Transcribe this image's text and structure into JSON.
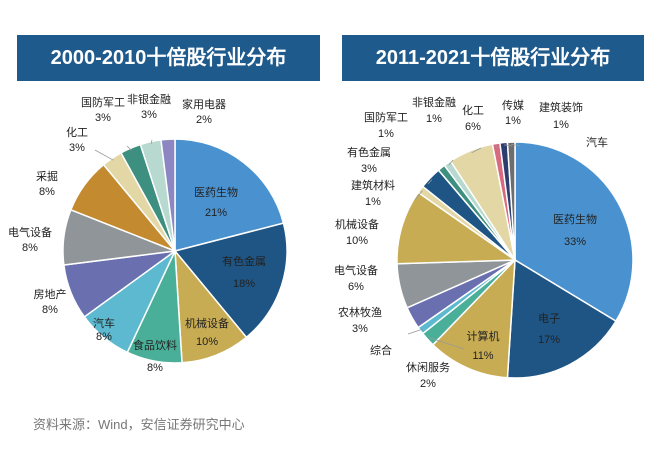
{
  "source_text": "资料来源：Wind，安信证券研究中心",
  "colors": {
    "header": "#1f5a8c",
    "医药生物": "#4a92cf",
    "有色金属": "#1f5584",
    "机械设备": "#c8ac54",
    "食品饮料": "#4aaf98",
    "汽车": "#5cb9cf",
    "房地产": "#6a6faf",
    "电气设备": "#8f9599",
    "采掘": "#c48a30",
    "化工": "#e2d7a5",
    "国防军工": "#3d8f7f",
    "非银金融": "#b7d9cf",
    "家用电器": "#8c86c2",
    "电子": "#1f5584",
    "计算机": "#c8ac54",
    "休闲服务": "#4aaf98",
    "综合": "#5cb9cf",
    "农林牧渔": "#6a6faf",
    "建筑材料": "#e2d7a5",
    "传媒": "#d86a7f",
    "建筑装饰": "#2c3d6e",
    "汽车b": "#6d6d6d"
  },
  "chart_data": [
    {
      "type": "pie",
      "title": "2000-2010十倍股行业分布",
      "slices": [
        {
          "label": "医药生物",
          "value": 21,
          "display": "21%"
        },
        {
          "label": "有色金属",
          "value": 18,
          "display": "18%"
        },
        {
          "label": "机械设备",
          "value": 10,
          "display": "10%"
        },
        {
          "label": "食品饮料",
          "value": 8,
          "display": "8%"
        },
        {
          "label": "汽车",
          "value": 8,
          "display": "8%"
        },
        {
          "label": "房地产",
          "value": 8,
          "display": "8%"
        },
        {
          "label": "电气设备",
          "value": 8,
          "display": "8%"
        },
        {
          "label": "采掘",
          "value": 8,
          "display": "8%"
        },
        {
          "label": "化工",
          "value": 3,
          "display": "3%"
        },
        {
          "label": "国防军工",
          "value": 3,
          "display": "3%"
        },
        {
          "label": "非银金融",
          "value": 3,
          "display": "3%"
        },
        {
          "label": "家用电器",
          "value": 2,
          "display": "2%"
        }
      ]
    },
    {
      "type": "pie",
      "title": "2011-2021十倍股行业分布",
      "slices": [
        {
          "label": "医药生物",
          "value": 33,
          "display": "33%"
        },
        {
          "label": "电子",
          "value": 17,
          "display": "17%"
        },
        {
          "label": "计算机",
          "value": 11,
          "display": "11%"
        },
        {
          "label": "休闲服务",
          "value": 2,
          "display": "2%"
        },
        {
          "label": "综合",
          "value": 1,
          "display": ""
        },
        {
          "label": "农林牧渔",
          "value": 3,
          "display": "3%"
        },
        {
          "label": "电气设备",
          "value": 6,
          "display": "6%"
        },
        {
          "label": "机械设备",
          "value": 10,
          "display": "10%"
        },
        {
          "label": "建筑材料",
          "value": 1,
          "display": "1%"
        },
        {
          "label": "有色金属",
          "value": 3,
          "display": "3%"
        },
        {
          "label": "国防军工",
          "value": 1,
          "display": "1%"
        },
        {
          "label": "非银金融",
          "value": 1,
          "display": "1%"
        },
        {
          "label": "化工",
          "value": 6,
          "display": "6%"
        },
        {
          "label": "传媒",
          "value": 1,
          "display": "1%"
        },
        {
          "label": "建筑装饰",
          "value": 1,
          "display": "1%"
        },
        {
          "label": "汽车",
          "value": 1,
          "display": ""
        }
      ]
    }
  ]
}
